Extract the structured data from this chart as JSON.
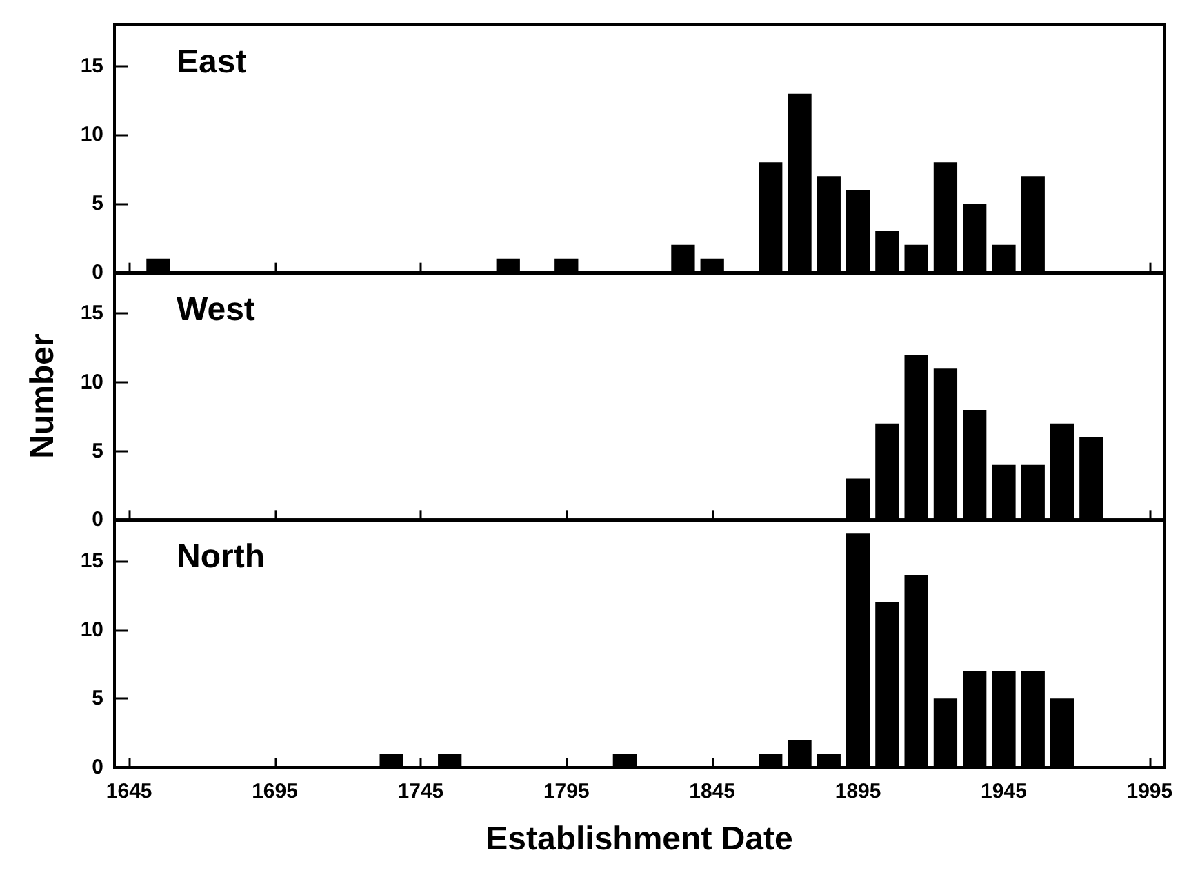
{
  "chart_data": [
    {
      "type": "histogram",
      "title": "East",
      "color": "#000000",
      "bins": [
        1640,
        1650,
        1660,
        1670,
        1680,
        1690,
        1700,
        1710,
        1720,
        1730,
        1740,
        1750,
        1760,
        1770,
        1780,
        1790,
        1800,
        1810,
        1820,
        1830,
        1840,
        1850,
        1860,
        1870,
        1880,
        1890,
        1900,
        1910,
        1920,
        1930,
        1940,
        1950,
        1960,
        1970,
        1980,
        1990,
        2000
      ],
      "values": [
        0,
        1,
        0,
        0,
        0,
        0,
        0,
        0,
        0,
        0,
        0,
        0,
        0,
        1,
        0,
        1,
        0,
        0,
        0,
        2,
        1,
        0,
        8,
        13,
        7,
        6,
        3,
        2,
        8,
        5,
        2,
        7,
        0,
        0,
        0,
        0
      ],
      "xlim": [
        1640,
        2000
      ],
      "xticks": [
        1645,
        1695,
        1745,
        1795,
        1845,
        1895,
        1945,
        1995
      ],
      "ylim": [
        0,
        18
      ],
      "yticks": [
        0,
        5,
        10,
        15
      ],
      "tick_labels": "y"
    },
    {
      "type": "histogram",
      "title": "West",
      "ylabel": "Number",
      "color": "#000000",
      "bins": [
        1640,
        1650,
        1660,
        1670,
        1680,
        1690,
        1700,
        1710,
        1720,
        1730,
        1740,
        1750,
        1760,
        1770,
        1780,
        1790,
        1800,
        1810,
        1820,
        1830,
        1840,
        1850,
        1860,
        1870,
        1880,
        1890,
        1900,
        1910,
        1920,
        1930,
        1940,
        1950,
        1960,
        1970,
        1980,
        1990,
        2000
      ],
      "values": [
        0,
        0,
        0,
        0,
        0,
        0,
        0,
        0,
        0,
        0,
        0,
        0,
        0,
        0,
        0,
        0,
        0,
        0,
        0,
        0,
        0,
        0,
        0,
        0,
        0,
        3,
        7,
        12,
        11,
        8,
        4,
        4,
        7,
        6,
        0,
        0
      ],
      "xlim": [
        1640,
        2000
      ],
      "xticks": [
        1645,
        1695,
        1745,
        1795,
        1845,
        1895,
        1945,
        1995
      ],
      "ylim": [
        0,
        18
      ],
      "yticks": [
        0,
        5,
        10,
        15
      ],
      "tick_labels": "y"
    },
    {
      "type": "histogram",
      "title": "North",
      "xlabel": "Establishment Date",
      "color": "#000000",
      "bins": [
        1640,
        1650,
        1660,
        1670,
        1680,
        1690,
        1700,
        1710,
        1720,
        1730,
        1740,
        1750,
        1760,
        1770,
        1780,
        1790,
        1800,
        1810,
        1820,
        1830,
        1840,
        1850,
        1860,
        1870,
        1880,
        1890,
        1900,
        1910,
        1920,
        1930,
        1940,
        1950,
        1960,
        1970,
        1980,
        1990,
        2000
      ],
      "values": [
        0,
        0,
        0,
        0,
        0,
        0,
        0,
        0,
        0,
        1,
        0,
        1,
        0,
        0,
        0,
        0,
        0,
        1,
        0,
        0,
        0,
        0,
        1,
        2,
        1,
        17,
        12,
        14,
        5,
        7,
        7,
        7,
        5,
        0,
        0,
        0
      ],
      "xlim": [
        1640,
        2000
      ],
      "xticks": [
        1645,
        1695,
        1745,
        1795,
        1845,
        1895,
        1945,
        1995
      ],
      "ylim": [
        0,
        18
      ],
      "yticks": [
        0,
        5,
        10,
        15
      ]
    }
  ]
}
